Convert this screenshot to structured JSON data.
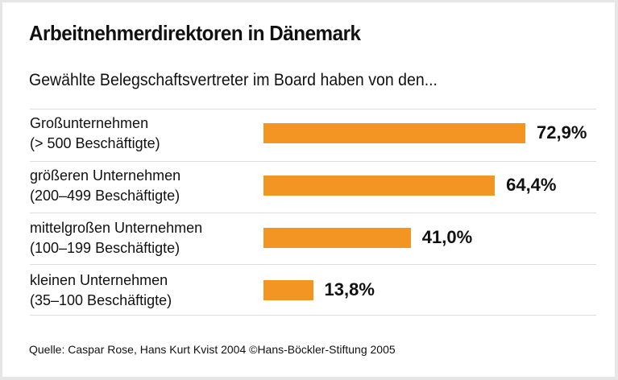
{
  "chart_data": {
    "type": "bar",
    "orientation": "horizontal",
    "title": "Arbeitnehmerdirektoren in Dänemark",
    "subtitle": "Gewählte Belegschaftsvertreter im Board haben von den...",
    "categories": [
      {
        "line1": "Großunternehmen",
        "line2": "(> 500 Beschäftigte)"
      },
      {
        "line1": "größeren Unternehmen",
        "line2": "(200–499 Beschäftigte)"
      },
      {
        "line1": "mittelgroßen Unternehmen",
        "line2": "(100–199 Beschäftigte)"
      },
      {
        "line1": "kleinen Unternehmen",
        "line2": "(35–100 Beschäftigte)"
      }
    ],
    "values": [
      72.9,
      64.4,
      41.0,
      13.8
    ],
    "value_labels": [
      "72,9%",
      "64,4%",
      "41,0%",
      "13,8%"
    ],
    "bar_color": "#f29523",
    "grid": false,
    "source": "Quelle: Caspar Rose, Hans Kurt Kvist 2004  ©Hans-Böckler-Stiftung 2005"
  }
}
